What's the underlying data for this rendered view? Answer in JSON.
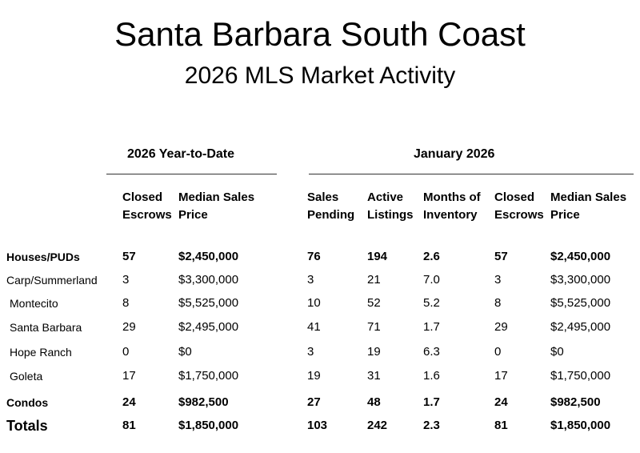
{
  "header": {
    "title": "Santa Barbara South Coast",
    "subtitle": "2026 MLS Market Activity"
  },
  "groups": {
    "ytd": "2026 Year-to-Date",
    "month": "January 2026"
  },
  "columns": [
    {
      "line1": "Closed",
      "line2": "Escrows"
    },
    {
      "line1": "Median Sales",
      "line2": "Price"
    },
    {
      "line1": "Sales",
      "line2": "Pending"
    },
    {
      "line1": "Active",
      "line2": "Listings"
    },
    {
      "line1": "Months of",
      "line2": "Inventory"
    },
    {
      "line1": "Closed",
      "line2": "Escrows"
    },
    {
      "line1": "Median Sales",
      "line2": "Price"
    }
  ],
  "rows": [
    {
      "label": "Houses/PUDs",
      "values": [
        "57",
        "$2,450,000",
        "76",
        "194",
        "2.6",
        "57",
        "$2,450,000"
      ]
    },
    {
      "label": "Carp/Summerland",
      "values": [
        "3",
        "$3,300,000",
        "3",
        "21",
        "7.0",
        "3",
        "$3,300,000"
      ]
    },
    {
      "label": "Montecito",
      "values": [
        "8",
        "$5,525,000",
        "10",
        "52",
        "5.2",
        "8",
        "$5,525,000"
      ]
    },
    {
      "label": "Santa Barbara",
      "values": [
        "29",
        "$2,495,000",
        "41",
        "71",
        "1.7",
        "29",
        "$2,495,000"
      ]
    },
    {
      "label": "Hope Ranch",
      "values": [
        "0",
        "$0",
        "3",
        "19",
        "6.3",
        "0",
        "$0"
      ]
    },
    {
      "label": "Goleta",
      "values": [
        "17",
        "$1,750,000",
        "19",
        "31",
        "1.6",
        "17",
        "$1,750,000"
      ]
    },
    {
      "label": "Condos",
      "values": [
        "24",
        "$982,500",
        "27",
        "48",
        "1.7",
        "24",
        "$982,500"
      ]
    },
    {
      "label": "Totals",
      "values": [
        "81",
        "$1,850,000",
        "103",
        "242",
        "2.3",
        "81",
        "$1,850,000"
      ]
    }
  ]
}
